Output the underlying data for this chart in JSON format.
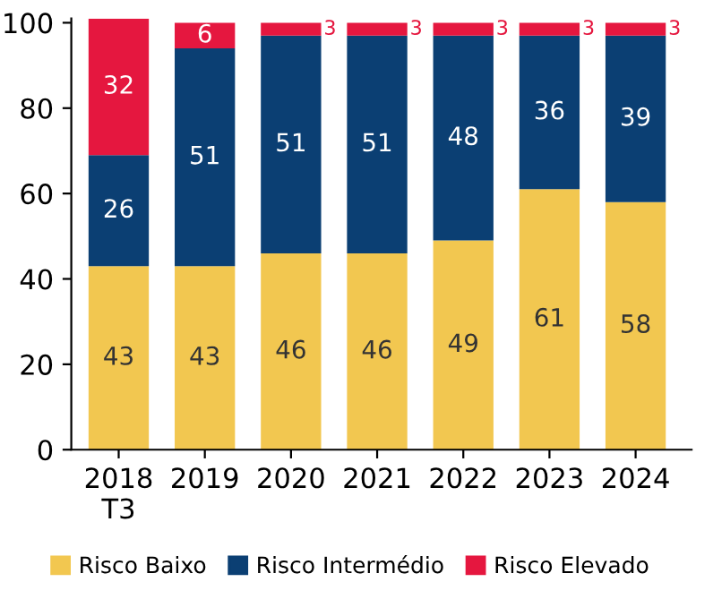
{
  "chart_data": {
    "type": "bar",
    "stacked": true,
    "categories": [
      "2018\nT3",
      "2019",
      "2020",
      "2021",
      "2022",
      "2023",
      "2024"
    ],
    "series": [
      {
        "name": "Risco Baixo",
        "color": "#f2c750",
        "values": [
          43,
          43,
          46,
          46,
          49,
          61,
          58
        ]
      },
      {
        "name": "Risco Intermédio",
        "color": "#0b3f73",
        "values": [
          26,
          51,
          51,
          51,
          48,
          36,
          39
        ]
      },
      {
        "name": "Risco Elevado",
        "color": "#e5173f",
        "values": [
          32,
          6,
          3,
          3,
          3,
          3,
          3
        ]
      }
    ],
    "ylim": [
      0,
      101
    ],
    "yticks": [
      0,
      20,
      40,
      60,
      80,
      100
    ],
    "data_labels": true,
    "legend": "bottom",
    "grid": false
  }
}
